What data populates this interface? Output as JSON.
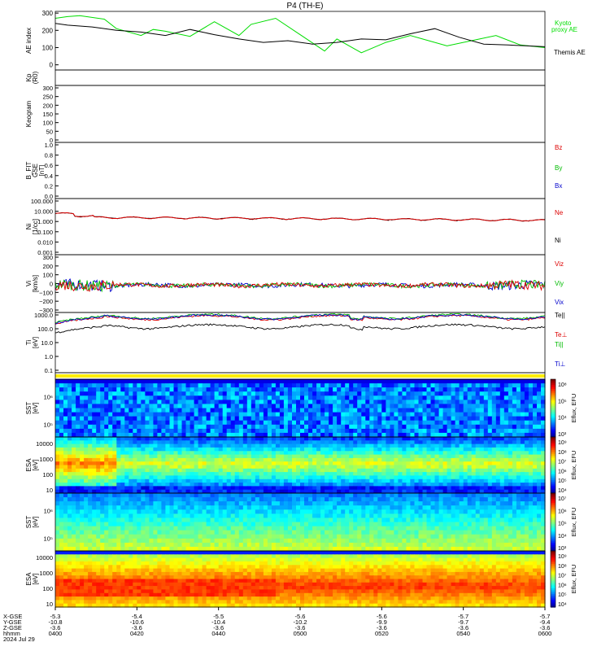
{
  "title": "P4  (TH-E)",
  "chart_data": [
    {
      "id": "ae",
      "type": "line",
      "ylabel": "AE index",
      "yticks": [
        "300",
        "200",
        "100",
        "0"
      ],
      "ylim": [
        -30,
        310
      ],
      "series": [
        {
          "name": "Kyoto proxy AE",
          "color": "#00dd00",
          "x": [
            5.3,
            5.31,
            5.32,
            5.34,
            5.35,
            5.37,
            5.38,
            5.39,
            5.41,
            5.43,
            5.45,
            5.46,
            5.48,
            5.5,
            5.52,
            5.53,
            5.55,
            5.57,
            5.59,
            5.6,
            5.62,
            5.64,
            5.66,
            5.68,
            5.7
          ],
          "values": [
            270,
            280,
            285,
            265,
            210,
            170,
            205,
            195,
            165,
            250,
            170,
            235,
            270,
            175,
            80,
            150,
            70,
            130,
            170,
            150,
            110,
            140,
            170,
            115,
            100
          ]
        },
        {
          "name": "Themis AE",
          "color": "#000000",
          "x": [
            5.3,
            5.31,
            5.33,
            5.35,
            5.37,
            5.39,
            5.41,
            5.43,
            5.45,
            5.47,
            5.49,
            5.51,
            5.53,
            5.55,
            5.57,
            5.59,
            5.61,
            5.63,
            5.65,
            5.67,
            5.7
          ],
          "values": [
            240,
            230,
            220,
            200,
            190,
            170,
            205,
            175,
            150,
            130,
            140,
            120,
            130,
            150,
            145,
            180,
            210,
            160,
            120,
            115,
            105
          ]
        }
      ]
    },
    {
      "id": "kp",
      "type": "line",
      "ylabel": "Kp",
      "ylabel2": "(R0)",
      "yticks": [],
      "series": []
    },
    {
      "id": "keo",
      "type": "heatmap",
      "ylabel": "Keogram",
      "yticks": [
        "300",
        "250",
        "200",
        "150",
        "100",
        "50",
        "0"
      ]
    },
    {
      "id": "bfit",
      "type": "line",
      "ylabel": "B_FIT",
      "ylabel2": "GSE",
      "ylabel3": "[nT]",
      "yticks": [
        "1.0",
        "0.8",
        "0.6",
        "0.4",
        "0.2",
        "0.0"
      ],
      "series": [
        {
          "name": "Bz",
          "color": "#dd0000"
        },
        {
          "name": "By",
          "color": "#00bb00"
        },
        {
          "name": "Bx",
          "color": "#0000cc"
        }
      ]
    },
    {
      "id": "ni",
      "type": "line",
      "ylabel": "Ni",
      "ylabel2": "[1/cc]",
      "yticks": [
        "100.000",
        "10.000",
        "1.000",
        "0.100",
        "0.010",
        "0.001"
      ],
      "yscale": "log",
      "series": [
        {
          "name": "Ne",
          "color": "#dd0000"
        },
        {
          "name": "Ni",
          "color": "#000000"
        }
      ]
    },
    {
      "id": "vi",
      "type": "line",
      "ylabel": "Vi",
      "ylabel2": "[km/s]",
      "yticks": [
        "300",
        "200",
        "100",
        "0",
        "−100",
        "−200",
        "−300"
      ],
      "ylim": [
        -330,
        330
      ],
      "series": [
        {
          "name": "Viz",
          "color": "#dd0000"
        },
        {
          "name": "Viy",
          "color": "#00bb00"
        },
        {
          "name": "Vix",
          "color": "#0000cc"
        }
      ]
    },
    {
      "id": "ti",
      "type": "line",
      "ylabel": "Ti",
      "ylabel2": "[eV]",
      "yticks": [
        "1000.0",
        "100.0",
        "10.0",
        "1.0",
        "0.1"
      ],
      "yscale": "log",
      "series": [
        {
          "name": "Te||",
          "color": "#000000"
        },
        {
          "name": "Te⊥",
          "color": "#dd0000"
        },
        {
          "name": "Ti||",
          "color": "#00bb00"
        },
        {
          "name": "Ti⊥",
          "color": "#0000cc"
        }
      ]
    },
    {
      "id": "sst_e",
      "type": "heatmap",
      "ylabel": "SST",
      "ylabel2": "[eV]",
      "yticks": [
        "10⁶",
        "10⁵"
      ],
      "cbar": [
        "10⁸",
        "10⁵",
        "10⁴",
        "10³"
      ],
      "cbar_label": "Eflux, EFU"
    },
    {
      "id": "esa_e",
      "type": "heatmap",
      "ylabel": "ESA",
      "ylabel2": "[eV]",
      "yticks": [
        "10000",
        "1000",
        "100",
        "10"
      ],
      "cbar": [
        "10⁹",
        "10⁸",
        "10⁷",
        "10⁶",
        "10⁵",
        "10⁴"
      ],
      "cbar_label": "Eflux, EFU"
    },
    {
      "id": "sst_i",
      "type": "heatmap",
      "ylabel": "SST",
      "ylabel2": "[eV]",
      "yticks": [
        "10⁶",
        "10⁵"
      ],
      "cbar": [
        "10⁷",
        "10⁶",
        "10⁵",
        "10⁴",
        "10³"
      ],
      "cbar_label": "Eflux, EFU"
    },
    {
      "id": "esa_i",
      "type": "heatmap",
      "ylabel": "ESA",
      "ylabel2": "[eV]",
      "yticks": [
        "10000",
        "1000",
        "100",
        "10"
      ],
      "cbar": [
        "10⁹",
        "10⁸",
        "10⁷",
        "10⁶",
        "10⁵",
        "10⁴"
      ],
      "cbar_label": "Eflux, EFU"
    }
  ],
  "xaxis": {
    "row_labels": [
      "X-GSE",
      "Y-GSE",
      "Z-GSE",
      "hhmm",
      "2024 Jul 29"
    ],
    "ticks": [
      {
        "x": "-5.3",
        "y": "-10.8",
        "z": "-3.6",
        "t": "0400"
      },
      {
        "x": "-5.4",
        "y": "-10.6",
        "z": "-3.6",
        "t": "0420"
      },
      {
        "x": "-5.5",
        "y": "-10.4",
        "z": "-3.6",
        "t": "0440"
      },
      {
        "x": "-5.6",
        "y": "-10.2",
        "z": "-3.6",
        "t": "0500"
      },
      {
        "x": "-5.6",
        "y": "-9.9",
        "z": "-3.6",
        "t": "0520"
      },
      {
        "x": "-5.7",
        "y": "-9.7",
        "z": "-3.6",
        "t": "0540"
      },
      {
        "x": "-5.7",
        "y": "-9.4",
        "z": "-3.6",
        "t": "0600"
      }
    ]
  }
}
